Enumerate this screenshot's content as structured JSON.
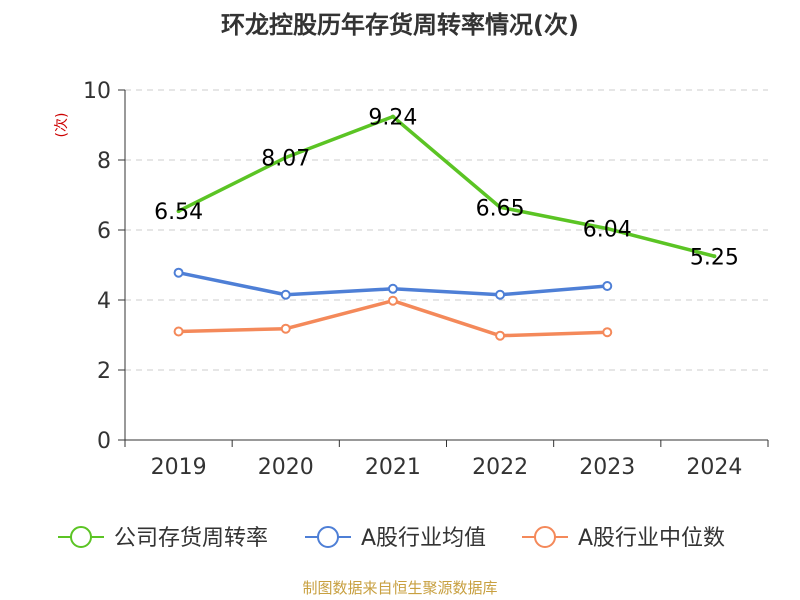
{
  "chart_data": {
    "type": "line",
    "title": "环龙控股历年存货周转率情况(次)",
    "ylabel": "(次)",
    "xlabel": "",
    "categories": [
      "2019",
      "2020",
      "2021",
      "2022",
      "2023",
      "2024"
    ],
    "ylim": [
      0,
      10
    ],
    "yticks": [
      0,
      2,
      4,
      6,
      8,
      10
    ],
    "grid": true,
    "legend_position": "bottom",
    "series": [
      {
        "name": "公司存货周转率",
        "color": "#5bc424",
        "values": [
          6.54,
          8.07,
          9.24,
          6.65,
          6.04,
          5.25
        ],
        "data_labels": [
          "6.54",
          "8.07",
          "9.24",
          "6.65",
          "6.04",
          "5.25"
        ]
      },
      {
        "name": "A股行业均值",
        "color": "#4e7fd6",
        "values": [
          4.78,
          4.15,
          4.32,
          4.15,
          4.4,
          null
        ]
      },
      {
        "name": "A股行业中位数",
        "color": "#f4895a",
        "values": [
          3.1,
          3.18,
          3.98,
          2.98,
          3.08,
          null
        ]
      }
    ]
  },
  "source": "制图数据来自恒生聚源数据库"
}
